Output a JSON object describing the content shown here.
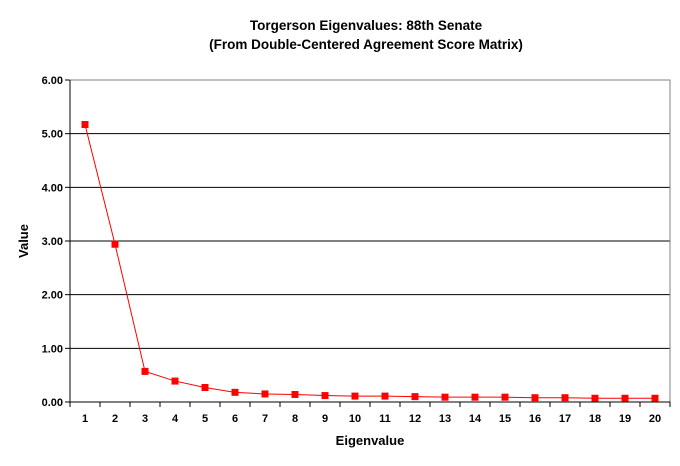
{
  "chart_data": {
    "type": "line",
    "title": "Torgerson Eigenvalues:  88th Senate",
    "subtitle": "(From Double-Centered Agreement Score Matrix)",
    "xlabel": "Eigenvalue",
    "ylabel": "Value",
    "x": [
      1,
      2,
      3,
      4,
      5,
      6,
      7,
      8,
      9,
      10,
      11,
      12,
      13,
      14,
      15,
      16,
      17,
      18,
      19,
      20
    ],
    "y_ticks": [
      "0.00",
      "1.00",
      "2.00",
      "3.00",
      "4.00",
      "5.00",
      "6.00"
    ],
    "ylim": [
      0,
      6
    ],
    "grid": true,
    "series": [
      {
        "color": "#ff0000",
        "marker": "square",
        "values": [
          5.17,
          2.94,
          0.57,
          0.39,
          0.27,
          0.18,
          0.15,
          0.14,
          0.12,
          0.11,
          0.11,
          0.1,
          0.09,
          0.09,
          0.09,
          0.08,
          0.08,
          0.07,
          0.07,
          0.07
        ]
      }
    ]
  }
}
